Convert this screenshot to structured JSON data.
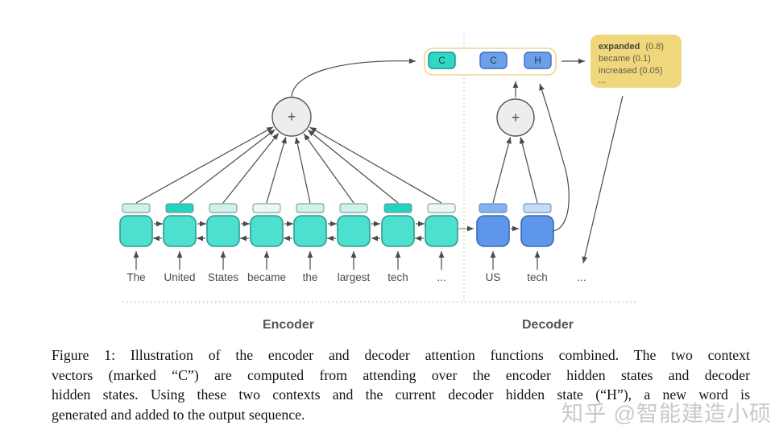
{
  "diagram": {
    "plus_label": "+",
    "context_box": {
      "encoder_context_label": "C",
      "decoder_context_label": "C",
      "hidden_state_label": "H"
    },
    "prediction_box": {
      "word": "expanded",
      "word_prob": "(0.8)",
      "alt1": "became (0.1)",
      "alt2": "increased (0.05)",
      "more": "..."
    },
    "encoder": {
      "label": "Encoder",
      "words": [
        "The",
        "United",
        "States",
        "became",
        "the",
        "largest",
        "tech",
        "..."
      ],
      "attention_bars": [
        "light",
        "dark",
        "light",
        "faint",
        "light",
        "light",
        "dark",
        "faint"
      ]
    },
    "decoder": {
      "label": "Decoder",
      "words": [
        "US",
        "tech",
        "..."
      ],
      "attention_bars": [
        "medium",
        "faint-blue"
      ]
    }
  },
  "caption": {
    "lines": [
      "Figure 1: Illustration of the encoder and decoder attention functions combined.  The two context",
      "vectors (marked “C”) are computed from attending over the encoder hidden states and decoder",
      "hidden states.  Using these two contexts and the current decoder hidden state (“H”), a new word is",
      "generated and added to the output sequence."
    ]
  },
  "watermark": "知乎 @智能建造小硕",
  "colors": {
    "encoder_state": "#4DE0CE",
    "decoder_state": "#5E97E9",
    "encoder_context": "#2FD8C5",
    "decoder_context": "#6CA0EA",
    "prediction_box": "#F1D77C",
    "context_container_border": "#EBD78D",
    "attention_dark": "#22D3C0",
    "attention_light": "#CDF2EC"
  }
}
